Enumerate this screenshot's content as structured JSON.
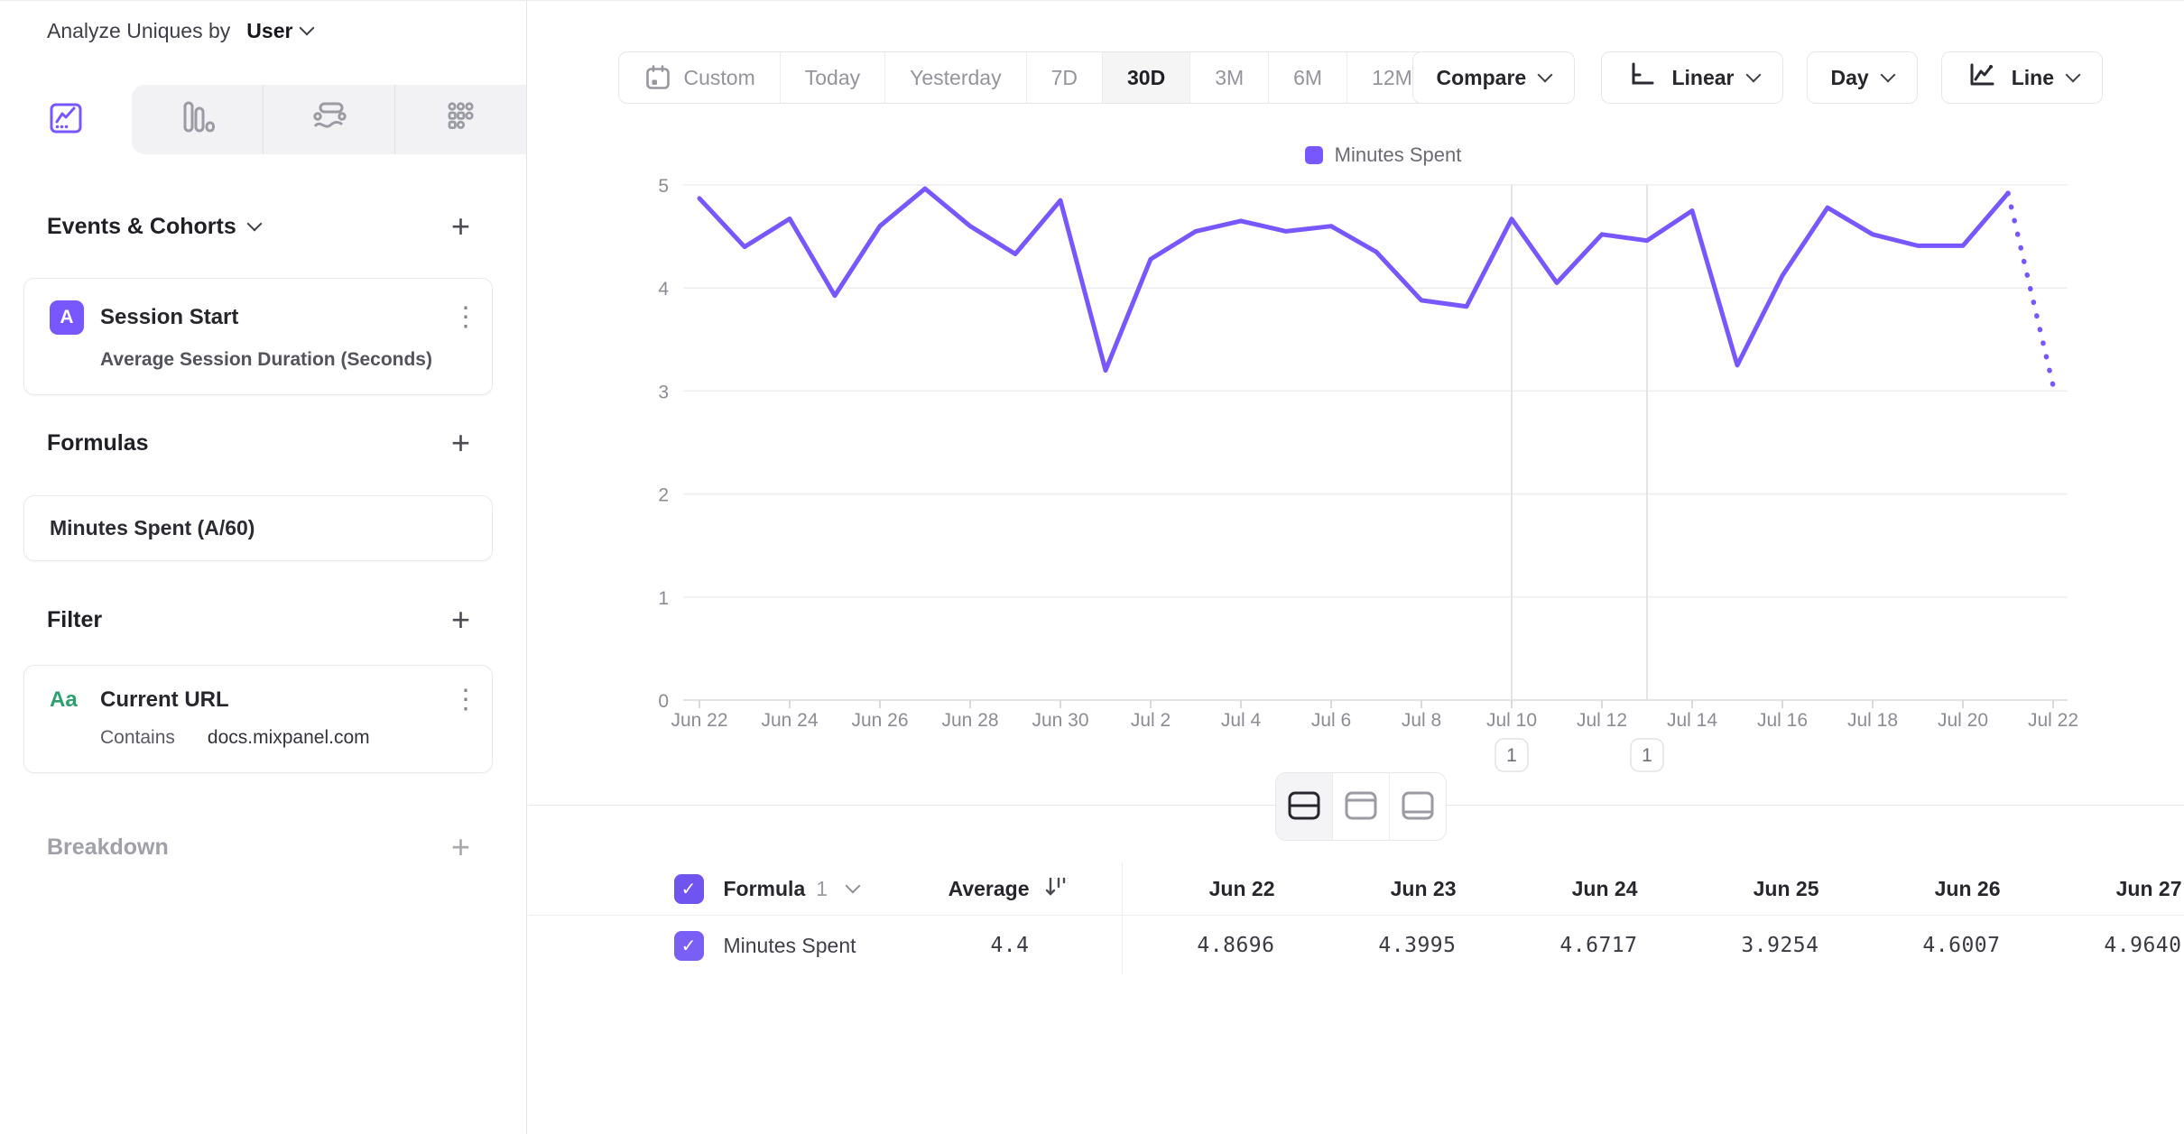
{
  "colors": {
    "accent": "#7857FF",
    "green": "#2e9e6f",
    "grid": "#ededf0",
    "muted_text": "#94949c"
  },
  "icons": {
    "calendar-icon": "calendar outline with bottom-left day square",
    "chevron-down-icon": "v",
    "kebab-icon": "⋮",
    "plus-icon": "+",
    "check-icon": "✓",
    "sort-icon": "down arrow with value bars",
    "linear-scale-icon": "L-shaped axis",
    "line-chart-icon": "axis with zigzag line"
  },
  "sidebar": {
    "analyze_label": "Analyze Uniques by",
    "analyze_value": "User",
    "tabs": [
      {
        "name": "insights-line",
        "active": true
      },
      {
        "name": "bar",
        "active": false
      },
      {
        "name": "flow",
        "active": false
      },
      {
        "name": "grid",
        "active": false
      }
    ],
    "events_header": "Events & Cohorts",
    "event_card": {
      "badge": "A",
      "title": "Session Start",
      "subtitle": "Average Session Duration (Seconds)"
    },
    "formulas_header": "Formulas",
    "formula_card": {
      "title": "Minutes Spent (A/60)"
    },
    "filter_header": "Filter",
    "filter_card": {
      "badge": "Aa",
      "title": "Current URL",
      "operator": "Contains",
      "value": "docs.mixpanel.com"
    },
    "breakdown_header": "Breakdown"
  },
  "toolbar": {
    "date_ranges": [
      "Custom",
      "Today",
      "Yesterday",
      "7D",
      "30D",
      "3M",
      "6M",
      "12M"
    ],
    "active_range": "30D",
    "compare_label": "Compare",
    "scale_label": "Linear",
    "interval_label": "Day",
    "chart_type_label": "Line"
  },
  "legend": {
    "label": "Minutes Spent",
    "color": "#7857FF"
  },
  "chart_data": {
    "type": "line",
    "title": "",
    "xlabel": "",
    "ylabel": "",
    "ylim": [
      0,
      5
    ],
    "yticks": [
      0,
      1,
      2,
      3,
      4,
      5
    ],
    "grid": "horizontal",
    "legend_position": "top",
    "x_label_every": 2,
    "x": [
      "Jun 22",
      "Jun 23",
      "Jun 24",
      "Jun 25",
      "Jun 26",
      "Jun 27",
      "Jun 28",
      "Jun 29",
      "Jun 30",
      "Jul 1",
      "Jul 2",
      "Jul 3",
      "Jul 4",
      "Jul 5",
      "Jul 6",
      "Jul 7",
      "Jul 8",
      "Jul 9",
      "Jul 10",
      "Jul 11",
      "Jul 12",
      "Jul 13",
      "Jul 14",
      "Jul 15",
      "Jul 16",
      "Jul 17",
      "Jul 18",
      "Jul 19",
      "Jul 20",
      "Jul 21",
      "Jul 22"
    ],
    "series": [
      {
        "name": "Minutes Spent",
        "color": "#7857FF",
        "dotted_from_index": 29,
        "values": [
          4.8696,
          4.3995,
          4.6717,
          3.9254,
          4.6007,
          4.964,
          4.6,
          4.33,
          4.85,
          3.2,
          4.28,
          4.55,
          4.65,
          4.55,
          4.6,
          4.35,
          3.88,
          3.82,
          4.67,
          4.05,
          4.52,
          4.46,
          4.75,
          3.25,
          4.12,
          4.78,
          4.52,
          4.41,
          4.41,
          4.92,
          3.05
        ]
      }
    ],
    "annotations": [
      {
        "label": "1",
        "x_index": 18
      },
      {
        "label": "1",
        "x_index": 21
      }
    ]
  },
  "table": {
    "name_header": "Formula",
    "name_header_index": "1",
    "average_header": "Average",
    "columns": [
      "Jun 22",
      "Jun 23",
      "Jun 24",
      "Jun 25",
      "Jun 26",
      "Jun 27"
    ],
    "rows": [
      {
        "name": "Minutes Spent",
        "average": "4.4",
        "values": [
          "4.8696",
          "4.3995",
          "4.6717",
          "3.9254",
          "4.6007",
          "4.9640"
        ]
      }
    ]
  }
}
